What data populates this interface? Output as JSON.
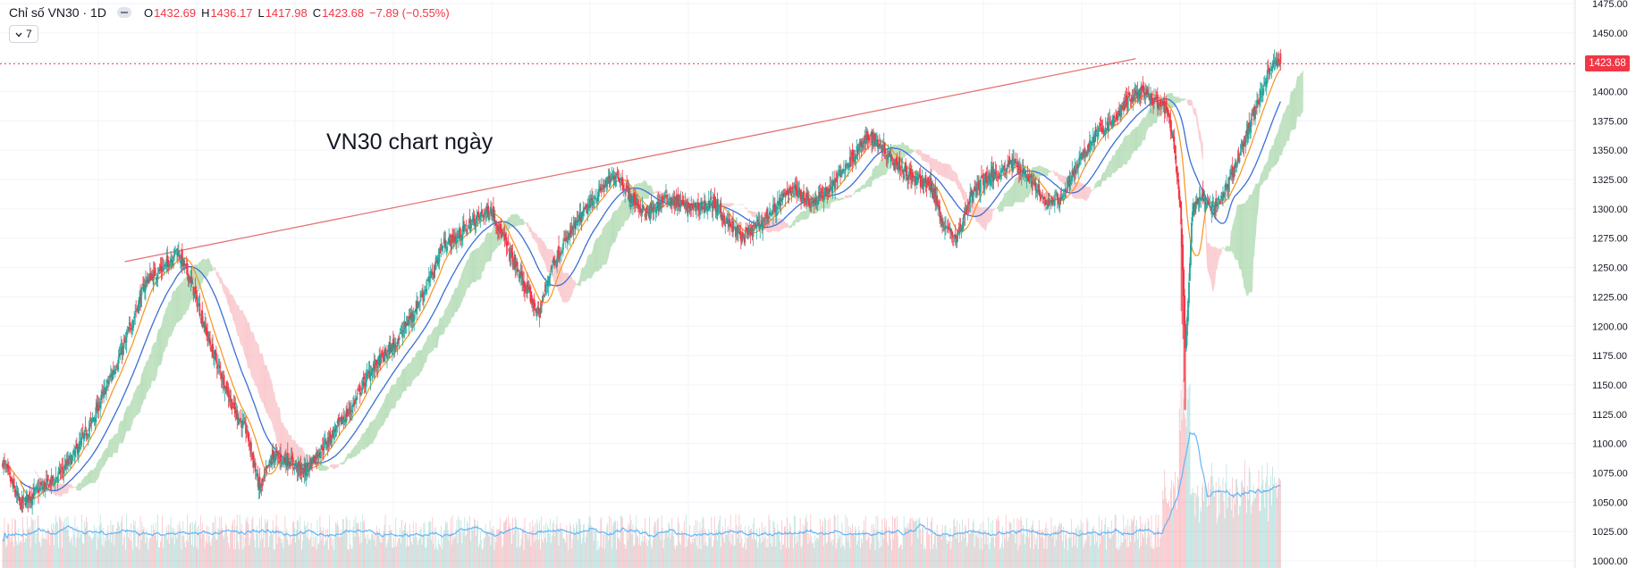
{
  "legend": {
    "symbol": "Chỉ số VN30 · 1D",
    "open_label": "O",
    "open": "1432.69",
    "high_label": "H",
    "high": "1436.17",
    "low_label": "L",
    "low": "1417.98",
    "close_label": "C",
    "close": "1423.68",
    "change": "−7.89 (−0.55%)"
  },
  "indicator_chip": {
    "count": "7"
  },
  "annotation": "VN30 chart ngày",
  "last_price_label": "1423.68",
  "colors": {
    "up": "#26a69a",
    "down": "#f23645",
    "ma_fast": "#f7931e",
    "ma_slow": "#3b6fd4",
    "cloud_bull": "#a5d6a7",
    "cloud_bear": "#f8bbc0",
    "trendline": "#e57373",
    "volume_ma": "#64b5f6"
  },
  "chart_data": {
    "type": "candlestick",
    "title": "Chỉ số VN30 · 1D",
    "ylim": [
      1000,
      1475
    ],
    "yticks": [
      1000,
      1025,
      1050,
      1075,
      1100,
      1125,
      1150,
      1175,
      1200,
      1225,
      1250,
      1275,
      1300,
      1325,
      1350,
      1375,
      1400,
      1425,
      1450,
      1475
    ],
    "last_close": 1423.68,
    "anchors": [
      [
        0,
        1085
      ],
      [
        20,
        1048
      ],
      [
        40,
        1060
      ],
      [
        60,
        1070
      ],
      [
        80,
        1088
      ],
      [
        100,
        1115
      ],
      [
        120,
        1150
      ],
      [
        140,
        1185
      ],
      [
        165,
        1240
      ],
      [
        185,
        1250
      ],
      [
        200,
        1265
      ],
      [
        215,
        1240
      ],
      [
        240,
        1180
      ],
      [
        265,
        1130
      ],
      [
        280,
        1110
      ],
      [
        295,
        1060
      ],
      [
        310,
        1090
      ],
      [
        330,
        1085
      ],
      [
        345,
        1075
      ],
      [
        365,
        1095
      ],
      [
        380,
        1110
      ],
      [
        400,
        1130
      ],
      [
        420,
        1160
      ],
      [
        450,
        1185
      ],
      [
        470,
        1210
      ],
      [
        490,
        1240
      ],
      [
        505,
        1270
      ],
      [
        520,
        1275
      ],
      [
        540,
        1290
      ],
      [
        560,
        1300
      ],
      [
        580,
        1265
      ],
      [
        600,
        1232
      ],
      [
        615,
        1210
      ],
      [
        630,
        1252
      ],
      [
        650,
        1278
      ],
      [
        670,
        1300
      ],
      [
        690,
        1320
      ],
      [
        705,
        1330
      ],
      [
        720,
        1310
      ],
      [
        740,
        1295
      ],
      [
        760,
        1310
      ],
      [
        790,
        1300
      ],
      [
        815,
        1305
      ],
      [
        835,
        1285
      ],
      [
        850,
        1275
      ],
      [
        865,
        1285
      ],
      [
        885,
        1300
      ],
      [
        905,
        1318
      ],
      [
        930,
        1305
      ],
      [
        950,
        1318
      ],
      [
        975,
        1345
      ],
      [
        995,
        1362
      ],
      [
        1010,
        1352
      ],
      [
        1025,
        1340
      ],
      [
        1045,
        1325
      ],
      [
        1065,
        1320
      ],
      [
        1080,
        1285
      ],
      [
        1095,
        1275
      ],
      [
        1110,
        1310
      ],
      [
        1125,
        1325
      ],
      [
        1140,
        1330
      ],
      [
        1160,
        1340
      ],
      [
        1180,
        1325
      ],
      [
        1195,
        1305
      ],
      [
        1215,
        1310
      ],
      [
        1235,
        1340
      ],
      [
        1255,
        1365
      ],
      [
        1275,
        1375
      ],
      [
        1290,
        1392
      ],
      [
        1305,
        1400
      ],
      [
        1320,
        1392
      ],
      [
        1335,
        1385
      ],
      [
        1345,
        1350
      ],
      [
        1352,
        1290
      ],
      [
        1357,
        1180
      ],
      [
        1365,
        1300
      ],
      [
        1375,
        1310
      ],
      [
        1390,
        1300
      ],
      [
        1405,
        1320
      ],
      [
        1418,
        1345
      ],
      [
        1430,
        1370
      ],
      [
        1440,
        1392
      ],
      [
        1452,
        1418
      ],
      [
        1462,
        1425
      ],
      [
        1466,
        1423.68
      ]
    ],
    "ma_fast_offset": 0,
    "volume_scale": "relative"
  }
}
